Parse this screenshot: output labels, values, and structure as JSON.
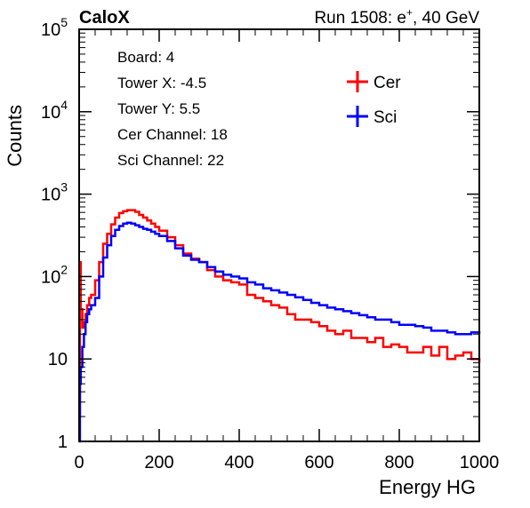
{
  "header": {
    "brand": "CaloX",
    "run_prefix": "Run 1508: e",
    "run_sup": "+",
    "run_suffix": ", 40 GeV"
  },
  "info": [
    {
      "text": "Board: 4"
    },
    {
      "text": "Tower X: -4.5"
    },
    {
      "text": "Tower Y: 5.5"
    },
    {
      "text": "Cer Channel: 18"
    },
    {
      "text": "Sci Channel: 22"
    }
  ],
  "chart_data": {
    "type": "line",
    "xlabel": "Energy HG",
    "ylabel": "Counts",
    "xlim": [
      0,
      1000
    ],
    "ylim": [
      1,
      100000
    ],
    "ylog": true,
    "legend_position": "top-right",
    "x_ticks": [
      "0",
      "200",
      "400",
      "600",
      "800",
      "1000"
    ],
    "y_ticks": [
      {
        "value": 1,
        "base": "1",
        "exp": ""
      },
      {
        "value": 10,
        "base": "10",
        "exp": ""
      },
      {
        "value": 100,
        "base": "10",
        "exp": "2"
      },
      {
        "value": 1000,
        "base": "10",
        "exp": "3"
      },
      {
        "value": 10000,
        "base": "10",
        "exp": "4"
      },
      {
        "value": 100000,
        "base": "10",
        "exp": "5"
      }
    ],
    "series": [
      {
        "name": "Cer",
        "color": "#ff0000",
        "x": [
          0,
          2,
          4,
          8,
          12,
          16,
          20,
          25,
          30,
          40,
          50,
          60,
          70,
          80,
          90,
          100,
          110,
          120,
          130,
          140,
          150,
          160,
          170,
          180,
          190,
          200,
          220,
          240,
          260,
          280,
          300,
          320,
          340,
          360,
          380,
          400,
          420,
          440,
          460,
          480,
          500,
          520,
          540,
          560,
          580,
          600,
          620,
          640,
          660,
          680,
          700,
          720,
          740,
          760,
          780,
          800,
          820,
          840,
          860,
          880,
          900,
          920,
          940,
          960,
          980,
          1000
        ],
        "y": [
          2,
          150,
          40,
          24,
          28,
          35,
          45,
          55,
          60,
          90,
          150,
          250,
          330,
          430,
          520,
          590,
          620,
          640,
          640,
          610,
          560,
          520,
          480,
          440,
          400,
          360,
          300,
          240,
          190,
          165,
          150,
          120,
          100,
          90,
          85,
          80,
          60,
          55,
          50,
          45,
          42,
          35,
          30,
          30,
          28,
          25,
          22,
          20,
          22,
          18,
          18,
          16,
          18,
          14,
          15,
          14,
          12,
          12,
          14,
          11,
          14,
          10,
          11,
          12,
          10,
          9
        ]
      },
      {
        "name": "Sci",
        "color": "#0000ff",
        "x": [
          0,
          2,
          4,
          8,
          12,
          16,
          20,
          25,
          30,
          40,
          50,
          60,
          70,
          80,
          90,
          100,
          110,
          120,
          130,
          140,
          150,
          160,
          170,
          180,
          190,
          200,
          220,
          240,
          260,
          280,
          300,
          320,
          340,
          360,
          380,
          400,
          420,
          440,
          460,
          480,
          500,
          520,
          540,
          560,
          580,
          600,
          620,
          640,
          660,
          680,
          700,
          720,
          740,
          760,
          780,
          800,
          820,
          840,
          860,
          880,
          900,
          920,
          940,
          960,
          980,
          1000
        ],
        "y": [
          1,
          5,
          8,
          14,
          20,
          28,
          35,
          40,
          45,
          55,
          100,
          170,
          240,
          310,
          370,
          410,
          440,
          450,
          440,
          420,
          400,
          380,
          370,
          350,
          330,
          310,
          270,
          220,
          180,
          160,
          150,
          130,
          115,
          105,
          100,
          95,
          85,
          80,
          72,
          68,
          64,
          60,
          56,
          52,
          48,
          45,
          42,
          40,
          38,
          36,
          34,
          32,
          30,
          30,
          28,
          26,
          26,
          25,
          24,
          22,
          22,
          21,
          20,
          20,
          21,
          20
        ]
      }
    ]
  }
}
